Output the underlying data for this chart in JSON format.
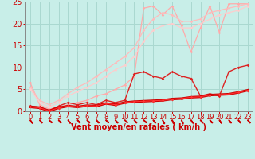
{
  "bg_color": "#c8eee8",
  "grid_color": "#aad8d0",
  "xlabel": "Vent moyen/en rafales ( km/h )",
  "xlabel_color": "#cc0000",
  "xlabel_fontsize": 7,
  "tick_color": "#cc0000",
  "tick_fontsize": 6,
  "xlim": [
    -0.5,
    23.5
  ],
  "ylim": [
    0,
    25
  ],
  "yticks": [
    0,
    5,
    10,
    15,
    20,
    25
  ],
  "xticks": [
    0,
    1,
    2,
    3,
    4,
    5,
    6,
    7,
    8,
    9,
    10,
    11,
    12,
    13,
    14,
    15,
    16,
    17,
    18,
    19,
    20,
    21,
    22,
    23
  ],
  "lines": [
    {
      "x": [
        0,
        1,
        2,
        3,
        4,
        5,
        6,
        7,
        8,
        9,
        10,
        11,
        12,
        13,
        14,
        15,
        16,
        17,
        18,
        19,
        20,
        21,
        22,
        23
      ],
      "y": [
        6.5,
        1.5,
        0.5,
        1.0,
        1.5,
        2.0,
        2.5,
        3.5,
        4.0,
        5.0,
        6.0,
        8.0,
        23.5,
        24.0,
        22.0,
        24.0,
        19.5,
        13.5,
        19.0,
        24.0,
        18.0,
        24.5,
        24.5,
        24.5
      ],
      "color": "#ffaaaa",
      "lw": 0.9,
      "marker": "D",
      "ms": 1.8,
      "zorder": 2
    },
    {
      "x": [
        0,
        1,
        2,
        3,
        4,
        5,
        6,
        7,
        8,
        9,
        10,
        11,
        12,
        13,
        14,
        15,
        16,
        17,
        18,
        19,
        20,
        21,
        22,
        23
      ],
      "y": [
        5.5,
        2.5,
        1.5,
        2.5,
        4.0,
        5.5,
        6.5,
        8.0,
        9.5,
        11.0,
        12.5,
        14.5,
        18.5,
        21.0,
        22.5,
        22.0,
        20.5,
        20.5,
        21.0,
        22.5,
        23.0,
        23.5,
        24.0,
        24.5
      ],
      "color": "#ffbbbb",
      "lw": 0.9,
      "marker": "D",
      "ms": 1.8,
      "zorder": 2
    },
    {
      "x": [
        0,
        1,
        2,
        3,
        4,
        5,
        6,
        7,
        8,
        9,
        10,
        11,
        12,
        13,
        14,
        15,
        16,
        17,
        18,
        19,
        20,
        21,
        22,
        23
      ],
      "y": [
        5.0,
        2.0,
        1.0,
        2.0,
        3.5,
        4.5,
        5.5,
        6.5,
        8.0,
        9.5,
        10.5,
        12.5,
        16.0,
        18.5,
        19.5,
        20.0,
        19.0,
        19.0,
        20.0,
        21.0,
        22.0,
        22.5,
        23.0,
        24.0
      ],
      "color": "#ffcccc",
      "lw": 0.9,
      "marker": "D",
      "ms": 1.8,
      "zorder": 2
    },
    {
      "x": [
        0,
        1,
        2,
        3,
        4,
        5,
        6,
        7,
        8,
        9,
        10,
        11,
        12,
        13,
        14,
        15,
        16,
        17,
        18,
        19,
        20,
        21,
        22,
        23
      ],
      "y": [
        1.2,
        1.0,
        0.2,
        1.2,
        2.0,
        1.5,
        2.0,
        1.5,
        2.5,
        2.0,
        2.5,
        8.5,
        9.0,
        8.0,
        7.5,
        9.0,
        8.0,
        7.5,
        3.5,
        4.0,
        3.5,
        9.0,
        10.0,
        10.5
      ],
      "color": "#dd2222",
      "lw": 1.0,
      "marker": "D",
      "ms": 1.8,
      "zorder": 3
    },
    {
      "x": [
        0,
        1,
        2,
        3,
        4,
        5,
        6,
        7,
        8,
        9,
        10,
        11,
        12,
        13,
        14,
        15,
        16,
        17,
        18,
        19,
        20,
        21,
        22,
        23
      ],
      "y": [
        1.0,
        0.8,
        0.1,
        0.8,
        1.2,
        1.0,
        1.3,
        1.2,
        1.8,
        1.5,
        2.0,
        2.2,
        2.3,
        2.4,
        2.5,
        2.8,
        2.9,
        3.2,
        3.3,
        3.7,
        3.8,
        3.9,
        4.3,
        4.8
      ],
      "color": "#cc0000",
      "lw": 2.2,
      "marker": "D",
      "ms": 1.8,
      "zorder": 4
    },
    {
      "x": [
        0,
        1,
        2,
        3,
        4,
        5,
        6,
        7,
        8,
        9,
        10,
        11,
        12,
        13,
        14,
        15,
        16,
        17,
        18,
        19,
        20,
        21,
        22,
        23
      ],
      "y": [
        1.0,
        0.8,
        0.1,
        0.8,
        1.2,
        1.0,
        1.3,
        1.2,
        1.8,
        1.5,
        2.0,
        2.2,
        2.3,
        2.4,
        2.5,
        2.8,
        2.9,
        3.2,
        3.3,
        3.7,
        3.8,
        3.9,
        4.3,
        4.8
      ],
      "color": "#ff3333",
      "lw": 0.8,
      "marker": "D",
      "ms": 1.8,
      "zorder": 5
    }
  ],
  "arrow_angles": [
    220,
    215,
    210,
    215,
    220,
    215,
    210,
    215,
    210,
    215,
    210,
    215,
    210,
    215,
    230,
    230,
    235,
    220,
    215,
    215,
    220,
    215,
    215,
    215
  ]
}
